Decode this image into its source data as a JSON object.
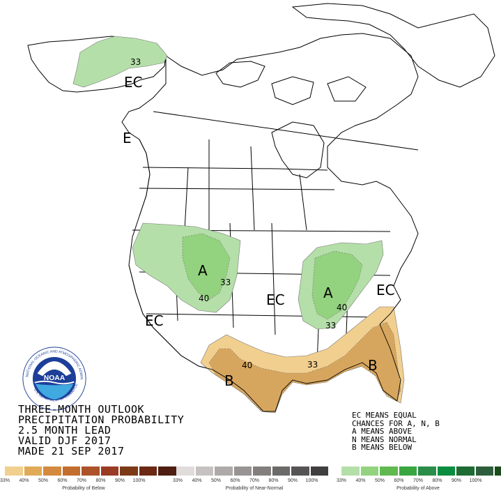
{
  "title_lines": [
    "THREE-MONTH OUTLOOK",
    "PRECIPITATION PROBABILITY",
    "2.5 MONTH LEAD",
    "VALID DJF 2017",
    "MADE 21 SEP 2017"
  ],
  "legend_note": [
    "EC MEANS EQUAL",
    "CHANCES FOR A, N, B",
    "A MEANS ABOVE",
    "N MEANS NORMAL",
    "B MEANS BELOW"
  ],
  "map_labels": {
    "ec_alaska": "EC",
    "e_west": "E",
    "a_northwest": "A",
    "ec_southwest": "EC",
    "ec_central": "EC",
    "a_ohio_valley": "A",
    "ec_east": "EC",
    "b_texas": "B",
    "b_southeast": "B"
  },
  "contour_labels": {
    "c33_alaska": "33",
    "c33_northwest": "33",
    "c40_northwest": "40",
    "c40_ohio": "40",
    "c33_ohio": "33",
    "c40_texas": "40",
    "c33_gulf": "33"
  },
  "logo": {
    "center_text": "NOAA",
    "ring_text": "NATIONAL OCEANIC AND ATMOSPHERIC ADMINISTRATION",
    "ring_text_bottom": "U.S. DEPARTMENT OF COMMERCE"
  },
  "colorbars": {
    "below": {
      "caption": "Probability of Below",
      "colors": [
        "#f1cf8f",
        "#e0aa57",
        "#d38a3e",
        "#c36d2f",
        "#ad5229",
        "#9a3b26",
        "#7c3a17",
        "#6b2814",
        "#4e1e12"
      ],
      "ticks": [
        "33%",
        "40%",
        "50%",
        "60%",
        "70%",
        "80%",
        "90%",
        "100%"
      ]
    },
    "normal": {
      "caption": "Probability of Near-Normal",
      "colors": [
        "#e0dcdc",
        "#c7c2c2",
        "#afaaaa",
        "#989494",
        "#837f7f",
        "#6c6969",
        "#565454",
        "#403e3e"
      ],
      "ticks": [
        "33%",
        "40%",
        "50%",
        "60%",
        "70%",
        "80%",
        "90%",
        "100%"
      ]
    },
    "above": {
      "caption": "Probability of Above",
      "colors": [
        "#b5dfa9",
        "#93d27e",
        "#5fb94f",
        "#3aa641",
        "#2b8d4a",
        "#0b8d3f",
        "#1e6b33",
        "#2d5e3b",
        "#1b4b1a"
      ],
      "ticks": [
        "33%",
        "40%",
        "50%",
        "60%",
        "70%",
        "80%",
        "90%",
        "100%"
      ]
    }
  },
  "colors": {
    "above_33": "#b5dfa9",
    "above_40": "#93d27e",
    "below_33": "#f1cf8f",
    "below_40": "#d7a65e",
    "noaa_blue": "#1d3f9a"
  }
}
